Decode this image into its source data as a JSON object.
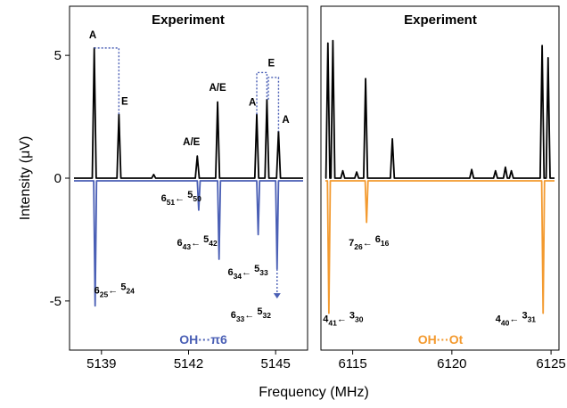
{
  "chart_data": [
    {
      "type": "line",
      "title": "Experiment",
      "xlabel": "Frequency (MHz)",
      "ylabel": "Intensity (μV)",
      "xlim": [
        5137.9,
        5146.1
      ],
      "ylim": [
        -7,
        7
      ],
      "xticks": [
        5139,
        5142,
        5145
      ],
      "yticks": [
        5,
        0,
        -5
      ],
      "colors": {
        "experiment": "#000000",
        "simulation": "#4a5fb5"
      },
      "experiment_peaks": [
        {
          "x": 5138.75,
          "y": 5.3
        },
        {
          "x": 5139.6,
          "y": 2.6
        },
        {
          "x": 5140.8,
          "y": 0.15
        },
        {
          "x": 5142.3,
          "y": 0.9
        },
        {
          "x": 5143.0,
          "y": 3.1
        },
        {
          "x": 5144.35,
          "y": 2.6
        },
        {
          "x": 5144.7,
          "y": 3.2
        },
        {
          "x": 5145.1,
          "y": 1.9
        }
      ],
      "peak_labels": [
        {
          "text": "A",
          "x": 5138.7,
          "y": 5.7
        },
        {
          "text": "E",
          "x": 5139.8,
          "y": 3.0
        },
        {
          "text": "A/E",
          "x": 5142.1,
          "y": 1.35
        },
        {
          "text": "A/E",
          "x": 5143.0,
          "y": 3.55
        },
        {
          "text": "A",
          "x": 5144.2,
          "y": 2.95
        },
        {
          "text": "E",
          "x": 5144.85,
          "y": 4.55
        },
        {
          "text": "A",
          "x": 5145.35,
          "y": 2.25
        }
      ],
      "simulation_peaks": [
        {
          "x": 5138.78,
          "y": -5.2
        },
        {
          "x": 5142.35,
          "y": -1.3
        },
        {
          "x": 5143.05,
          "y": -3.3
        },
        {
          "x": 5144.4,
          "y": -2.3
        },
        {
          "x": 5145.05,
          "y": -3.7
        }
      ],
      "transitions": [
        {
          "up": "6",
          "us": "25",
          "lo": "5",
          "ls": "24",
          "x": 5138.75,
          "y": -4.7
        },
        {
          "up": "6",
          "us": "51",
          "lo": "5",
          "ls": "50",
          "x": 5141.05,
          "y": -0.95
        },
        {
          "up": "6",
          "us": "43",
          "lo": "5",
          "ls": "42",
          "x": 5141.6,
          "y": -2.75
        },
        {
          "up": "6",
          "us": "34",
          "lo": "5",
          "ls": "33",
          "x": 5143.35,
          "y": -3.95
        },
        {
          "up": "6",
          "us": "33",
          "lo": "5",
          "ls": "32",
          "x": 5143.45,
          "y": -5.7
        }
      ],
      "legend": {
        "text": "OH···π6",
        "color": "#4a5fb5"
      }
    },
    {
      "type": "line",
      "title": "Experiment",
      "xlim": [
        6113.4,
        6125.4
      ],
      "ylim": [
        -7,
        7
      ],
      "xticks": [
        6115,
        6120,
        6125
      ],
      "colors": {
        "experiment": "#000000",
        "simulation": "#f39a2f"
      },
      "experiment_peaks": [
        {
          "x": 6113.75,
          "y": 5.5
        },
        {
          "x": 6114.0,
          "y": 5.6
        },
        {
          "x": 6114.5,
          "y": 0.3
        },
        {
          "x": 6115.2,
          "y": 0.25
        },
        {
          "x": 6115.65,
          "y": 4.05
        },
        {
          "x": 6117.0,
          "y": 1.6
        },
        {
          "x": 6121.0,
          "y": 0.35
        },
        {
          "x": 6122.2,
          "y": 0.3
        },
        {
          "x": 6122.7,
          "y": 0.45
        },
        {
          "x": 6123.0,
          "y": 0.3
        },
        {
          "x": 6124.55,
          "y": 5.4
        },
        {
          "x": 6124.85,
          "y": 4.9
        }
      ],
      "simulation_peaks": [
        {
          "x": 6113.8,
          "y": -5.5
        },
        {
          "x": 6115.7,
          "y": -1.8
        },
        {
          "x": 6124.6,
          "y": -5.5
        }
      ],
      "transitions": [
        {
          "up": "7",
          "us": "26",
          "lo": "6",
          "ls": "16",
          "x": 6114.8,
          "y": -2.75
        },
        {
          "up": "4",
          "us": "41",
          "lo": "3",
          "ls": "30",
          "x": 6113.5,
          "y": -5.85
        },
        {
          "up": "4",
          "us": "40",
          "lo": "3",
          "ls": "31",
          "x": 6122.2,
          "y": -5.85
        }
      ],
      "legend": {
        "text": "OH···Ot",
        "color": "#f39a2f"
      }
    }
  ]
}
